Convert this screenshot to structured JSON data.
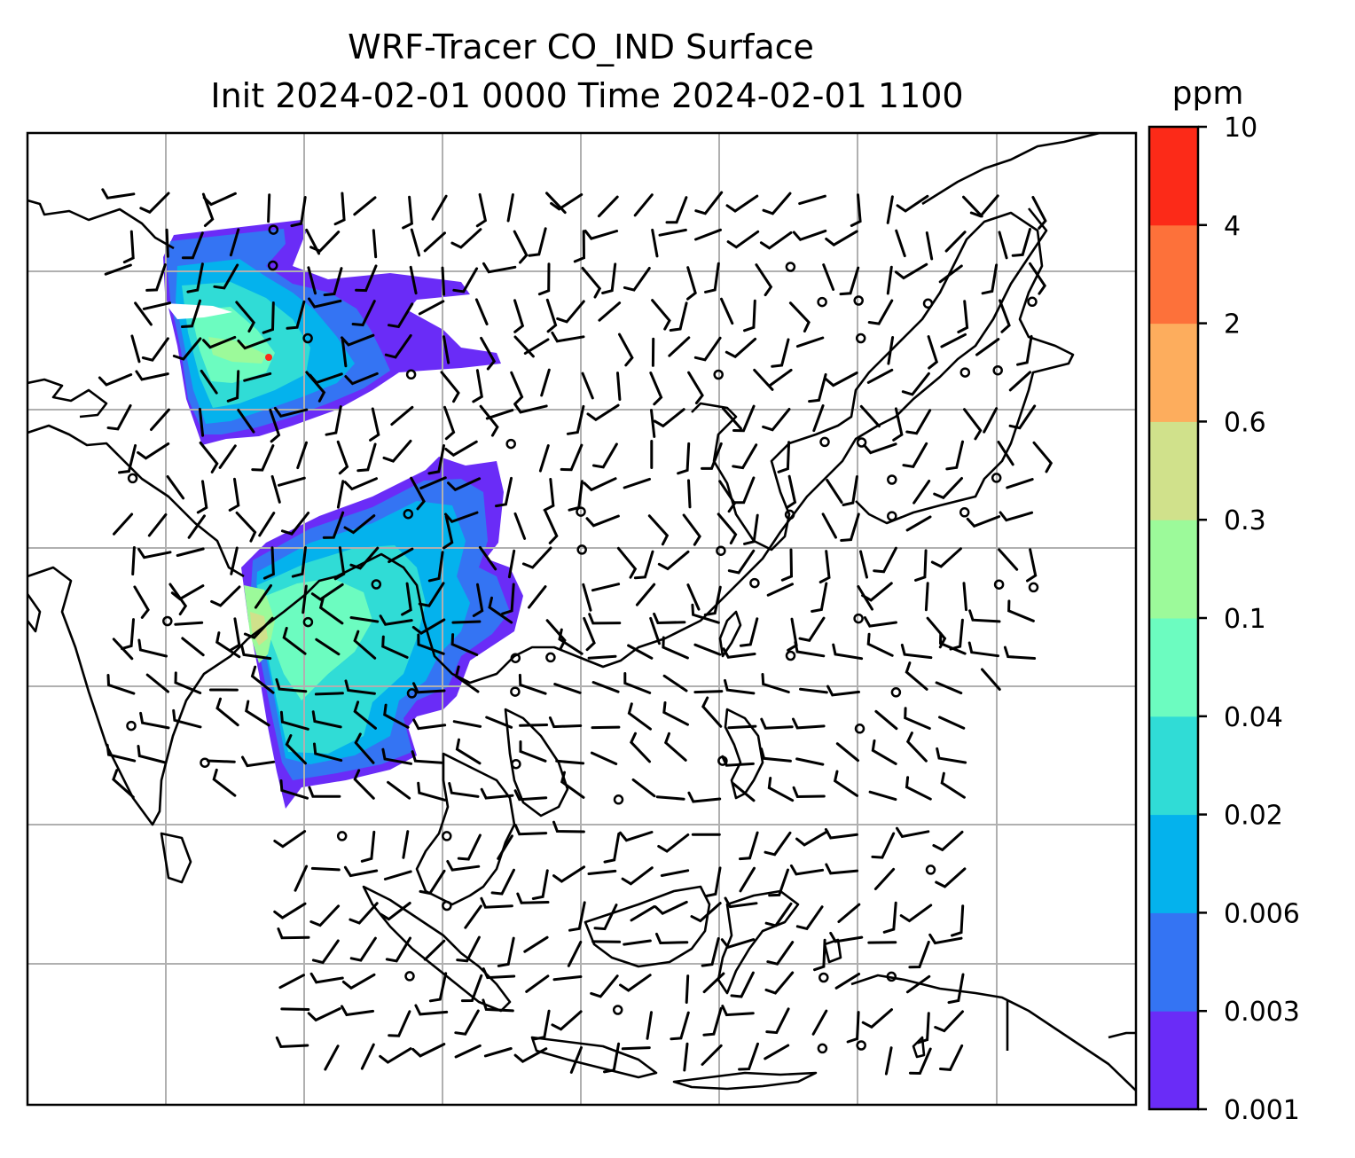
{
  "title": {
    "line1": "WRF-Tracer CO_IND Surface",
    "line2": "Init 2024-02-01 0000 Time 2024-02-01 1100"
  },
  "colorbar": {
    "unit": "ppm",
    "ticks": [
      "0.001",
      "0.003",
      "0.006",
      "0.02",
      "0.04",
      "0.1",
      "0.3",
      "0.6",
      "2",
      "4",
      "10"
    ],
    "colors": [
      "#6a2cf7",
      "#3474f3",
      "#04b2ed",
      "#30dcd6",
      "#6cfcc0",
      "#9cfa9a",
      "#d0e18b",
      "#fdad5d",
      "#fd713a",
      "#fc2a18"
    ]
  },
  "map": {
    "grid_color": "#b0b0b0",
    "coastline_color": "#000000",
    "plumes": [
      {
        "region": "north",
        "color_levels": [
          "0.001",
          "0.003",
          "0.006",
          "0.02",
          "0.04",
          "0.1",
          "0.3"
        ]
      },
      {
        "region": "south",
        "color_levels": [
          "0.001",
          "0.003",
          "0.006",
          "0.02",
          "0.04",
          "0.1",
          "0.3"
        ]
      }
    ],
    "wind_barbs": "present",
    "calm_markers": "present"
  }
}
